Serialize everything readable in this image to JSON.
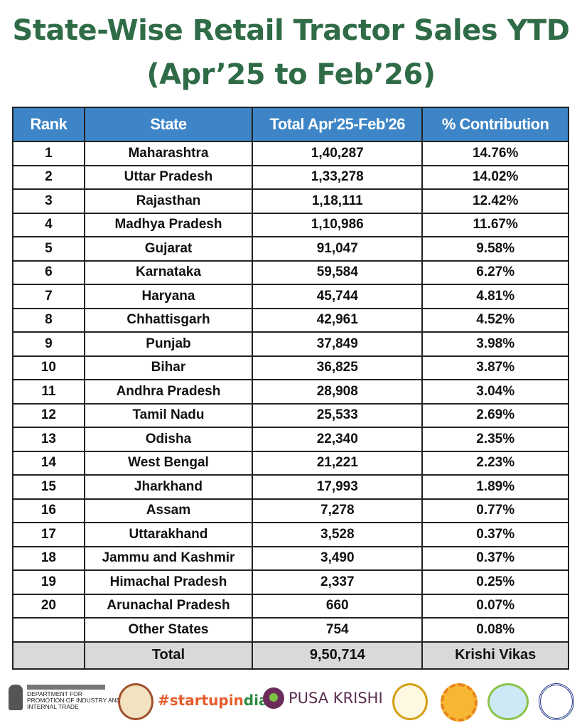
{
  "title": {
    "line1": "State-Wise Retail Tractor Sales YTD",
    "line2": "(Apr’25 to Feb’26)"
  },
  "table": {
    "headers": [
      "Rank",
      "State",
      "Total Apr'25-Feb'26",
      "% Contribution"
    ],
    "rows": [
      [
        "1",
        "Maharashtra",
        "1,40,287",
        "14.76%"
      ],
      [
        "2",
        "Uttar Pradesh",
        "1,33,278",
        "14.02%"
      ],
      [
        "3",
        "Rajasthan",
        "1,18,111",
        "12.42%"
      ],
      [
        "4",
        "Madhya Pradesh",
        "1,10,986",
        "11.67%"
      ],
      [
        "5",
        "Gujarat",
        "91,047",
        "9.58%"
      ],
      [
        "6",
        "Karnataka",
        "59,584",
        "6.27%"
      ],
      [
        "7",
        "Haryana",
        "45,744",
        "4.81%"
      ],
      [
        "8",
        "Chhattisgarh",
        "42,961",
        "4.52%"
      ],
      [
        "9",
        "Punjab",
        "37,849",
        "3.98%"
      ],
      [
        "10",
        "Bihar",
        "36,825",
        "3.87%"
      ],
      [
        "11",
        "Andhra Pradesh",
        "28,908",
        "3.04%"
      ],
      [
        "12",
        "Tamil Nadu",
        "25,533",
        "2.69%"
      ],
      [
        "13",
        "Odisha",
        "22,340",
        "2.35%"
      ],
      [
        "14",
        "West Bengal",
        "21,221",
        "2.23%"
      ],
      [
        "15",
        "Jharkhand",
        "17,993",
        "1.89%"
      ],
      [
        "16",
        "Assam",
        "7,278",
        "0.77%"
      ],
      [
        "17",
        "Uttarakhand",
        "3,528",
        "0.37%"
      ],
      [
        "18",
        "Jammu and Kashmir",
        "3,490",
        "0.37%"
      ],
      [
        "19",
        "Himachal Pradesh",
        "2,337",
        "0.25%"
      ],
      [
        "20",
        "Arunachal Pradesh",
        "660",
        "0.07%"
      ],
      [
        "",
        "Other States",
        "754",
        "0.08%"
      ]
    ],
    "total": [
      "",
      "Total",
      "9,50,714",
      "Krishi Vikas"
    ]
  },
  "footer": {
    "dpiit": {
      "line1": "DEPARTMENT FOR",
      "line2": "PROMOTION OF INDUSTRY AND",
      "line3": "INTERNAL TRADE"
    },
    "startup": {
      "main": "#startupin",
      "accent": "dia"
    },
    "pusa": "PUSA KRISHI"
  },
  "colors": {
    "title": "#2e6b46",
    "header": "#3d85c6",
    "total_row": "#d9d9d9"
  }
}
